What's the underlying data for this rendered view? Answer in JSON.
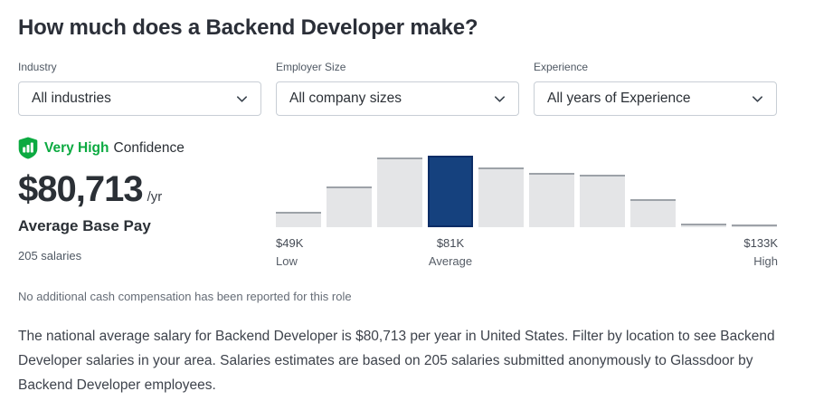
{
  "header": {
    "title": "How much does a Backend Developer make?"
  },
  "filters": {
    "industry": {
      "label": "Industry",
      "value": "All industries"
    },
    "employer_size": {
      "label": "Employer Size",
      "value": "All company sizes"
    },
    "experience": {
      "label": "Experience",
      "value": "All years of Experience"
    }
  },
  "icons": {
    "dropdown": "chevron-down-icon",
    "confidence": "shield-chart-icon"
  },
  "summary": {
    "confidence_level": "Very High",
    "confidence_suffix": "Confidence",
    "confidence_color": "#0caa41",
    "amount": "$80,713",
    "period": "/yr",
    "pay_label": "Average Base Pay",
    "sample_size": "205 salaries"
  },
  "chart_data": {
    "type": "bar",
    "values": [
      17,
      45,
      77,
      79,
      66,
      60,
      58,
      31,
      4,
      3
    ],
    "unit": "relative-bar-height-px",
    "highlight_index": 3,
    "bar_color": "#e4e5e7",
    "bar_top_color": "#9da2a8",
    "highlight_color": "#15417e",
    "highlight_border_color": "#0c2d66",
    "axis_labels": [
      {
        "position": "low",
        "value": "$49K",
        "caption": "Low"
      },
      {
        "position": "average",
        "value": "$81K",
        "caption": "Average"
      },
      {
        "position": "high",
        "value": "$133K",
        "caption": "High"
      }
    ]
  },
  "footnote": "No additional cash compensation has been reported for this role",
  "description": "The national average salary for Backend Developer is $80,713 per year in United States. Filter by location to see Backend Developer salaries in your area. Salaries estimates are based on 205 salaries submitted anonymously to Glassdoor by Backend Developer employees."
}
